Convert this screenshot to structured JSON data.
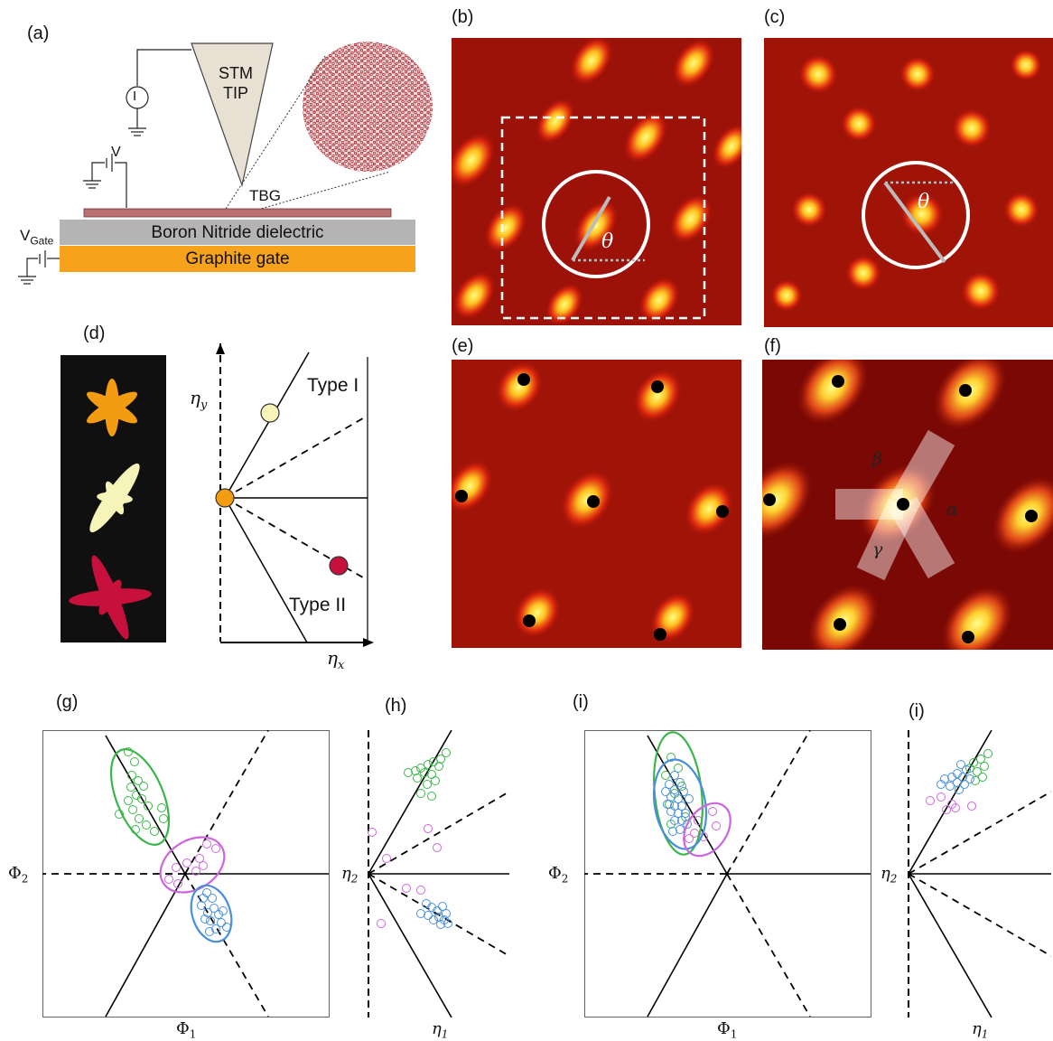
{
  "panels": {
    "a": "(a)",
    "b": "(b)",
    "c": "(c)",
    "d": "(d)",
    "e": "(e)",
    "f": "(f)",
    "g": "(g)",
    "h": "(h)",
    "i1": "(i)",
    "i2": "(i)"
  },
  "schematic": {
    "tip_line1": "STM",
    "tip_line2": "TIP",
    "current_symbol": "I",
    "bias": "V",
    "sample": "TBG",
    "gate_voltage": "V",
    "gate_voltage_sub": "Gate",
    "dielectric": "Boron Nitride dielectric",
    "gate": "Graphite gate"
  },
  "map_labels": {
    "theta": "θ",
    "alpha": "α",
    "beta": "β",
    "gamma": "γ"
  },
  "diagram_d": {
    "type1": "Type I",
    "type2": "Type II",
    "x_axis": "η",
    "x_sub": "x",
    "y_axis": "η",
    "y_sub": "y",
    "colors": {
      "type1_marker": "#f6f4b8",
      "center_marker": "#f39c12",
      "type2_marker": "#c8103c"
    }
  },
  "plots": {
    "g": {
      "x_axis": "Φ",
      "x_sub": "1",
      "y_axis": "Φ",
      "y_sub": "2"
    },
    "h": {
      "x_axis": "η",
      "x_sub": "1",
      "y_axis": "η",
      "y_sub": "2"
    },
    "i1": {
      "x_axis": "Φ",
      "x_sub": "1",
      "y_axis": "Φ",
      "y_sub": "2"
    },
    "i2": {
      "x_axis": "η",
      "x_sub": "1",
      "y_axis": "η",
      "y_sub": "2"
    }
  },
  "colors": {
    "cluster_green": "#3cb54a",
    "cluster_blue": "#4a8fdb",
    "cluster_magenta": "#cc66dd",
    "graphite": "#f7a21b",
    "dielectric": "#b4b4b4",
    "tbg_layer": "#b9706e"
  }
}
